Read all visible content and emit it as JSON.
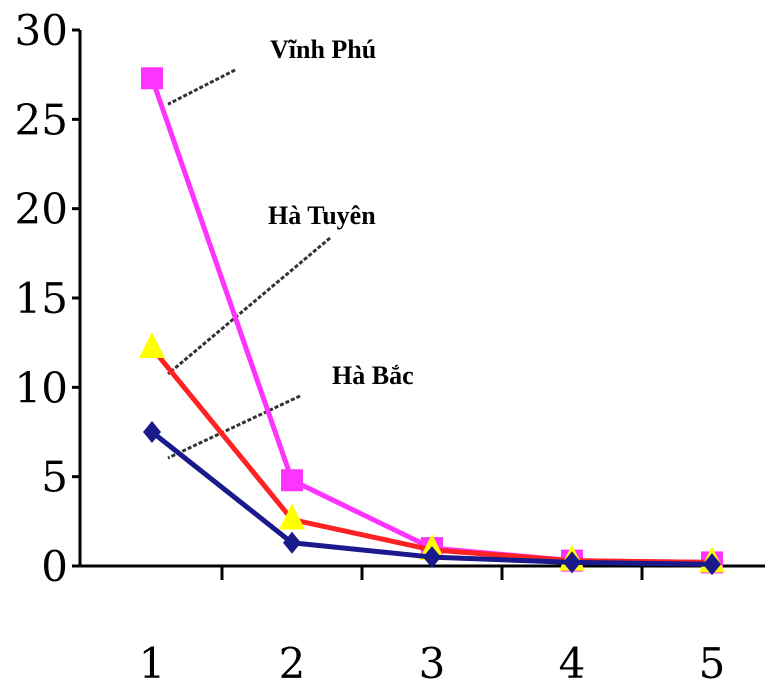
{
  "chart_data": {
    "type": "line",
    "x": [
      1,
      2,
      3,
      4,
      5
    ],
    "xlim": [
      0.5,
      5.5
    ],
    "ylim": [
      0,
      30
    ],
    "y_ticks": [
      0,
      5,
      10,
      15,
      20,
      25,
      30
    ],
    "x_ticks": [
      1,
      2,
      3,
      4,
      5
    ],
    "grid": false,
    "legend": "none",
    "series": [
      {
        "name": "Vĩnh Phú",
        "color": "#ff33ff",
        "marker": "square",
        "values": [
          27.3,
          4.8,
          1.0,
          0.3,
          0.2
        ]
      },
      {
        "name": "Hà Tuyên",
        "color": "#ff2222",
        "marker": "triangle",
        "values": [
          12.2,
          2.6,
          0.9,
          0.3,
          0.2
        ]
      },
      {
        "name": "Hà Bắc",
        "color": "#1a1a8c",
        "marker": "diamond",
        "values": [
          7.5,
          1.3,
          0.5,
          0.2,
          0.1
        ]
      }
    ],
    "triangle_color": "#ffff00",
    "annotations": [
      {
        "text": "Vĩnh Phú",
        "series": 0,
        "point": 0
      },
      {
        "text": "Hà Tuyên",
        "series": 1,
        "point": 0
      },
      {
        "text": "Hà Bắc",
        "series": 2,
        "point": 0
      }
    ]
  }
}
